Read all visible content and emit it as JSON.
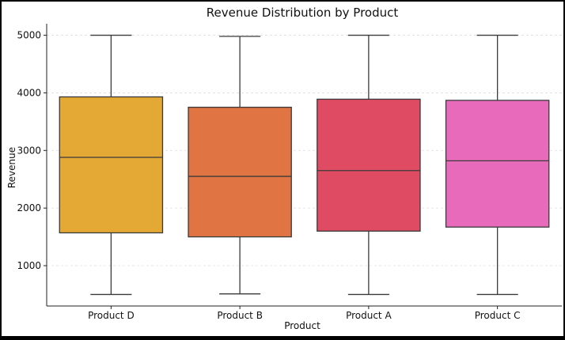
{
  "chart_data": {
    "type": "box",
    "title": "Revenue Distribution by Product",
    "xlabel": "Product",
    "ylabel": "Revenue",
    "ylim": [
      300,
      5200
    ],
    "yticks": [
      1000,
      2000,
      3000,
      4000,
      5000
    ],
    "grid": "horizontal-dashed",
    "categories": [
      "Product D",
      "Product B",
      "Product A",
      "Product C"
    ],
    "boxes": [
      {
        "category": "Product D",
        "min": 500,
        "q1": 1570,
        "median": 2880,
        "q3": 3930,
        "max": 5000,
        "color": "#e4a935"
      },
      {
        "category": "Product B",
        "min": 510,
        "q1": 1500,
        "median": 2550,
        "q3": 3750,
        "max": 4980,
        "color": "#e07442"
      },
      {
        "category": "Product A",
        "min": 500,
        "q1": 1600,
        "median": 2650,
        "q3": 3890,
        "max": 5000,
        "color": "#e04b64"
      },
      {
        "category": "Product C",
        "min": 500,
        "q1": 1670,
        "median": 2820,
        "q3": 3870,
        "max": 5000,
        "color": "#e86bbb"
      }
    ]
  }
}
